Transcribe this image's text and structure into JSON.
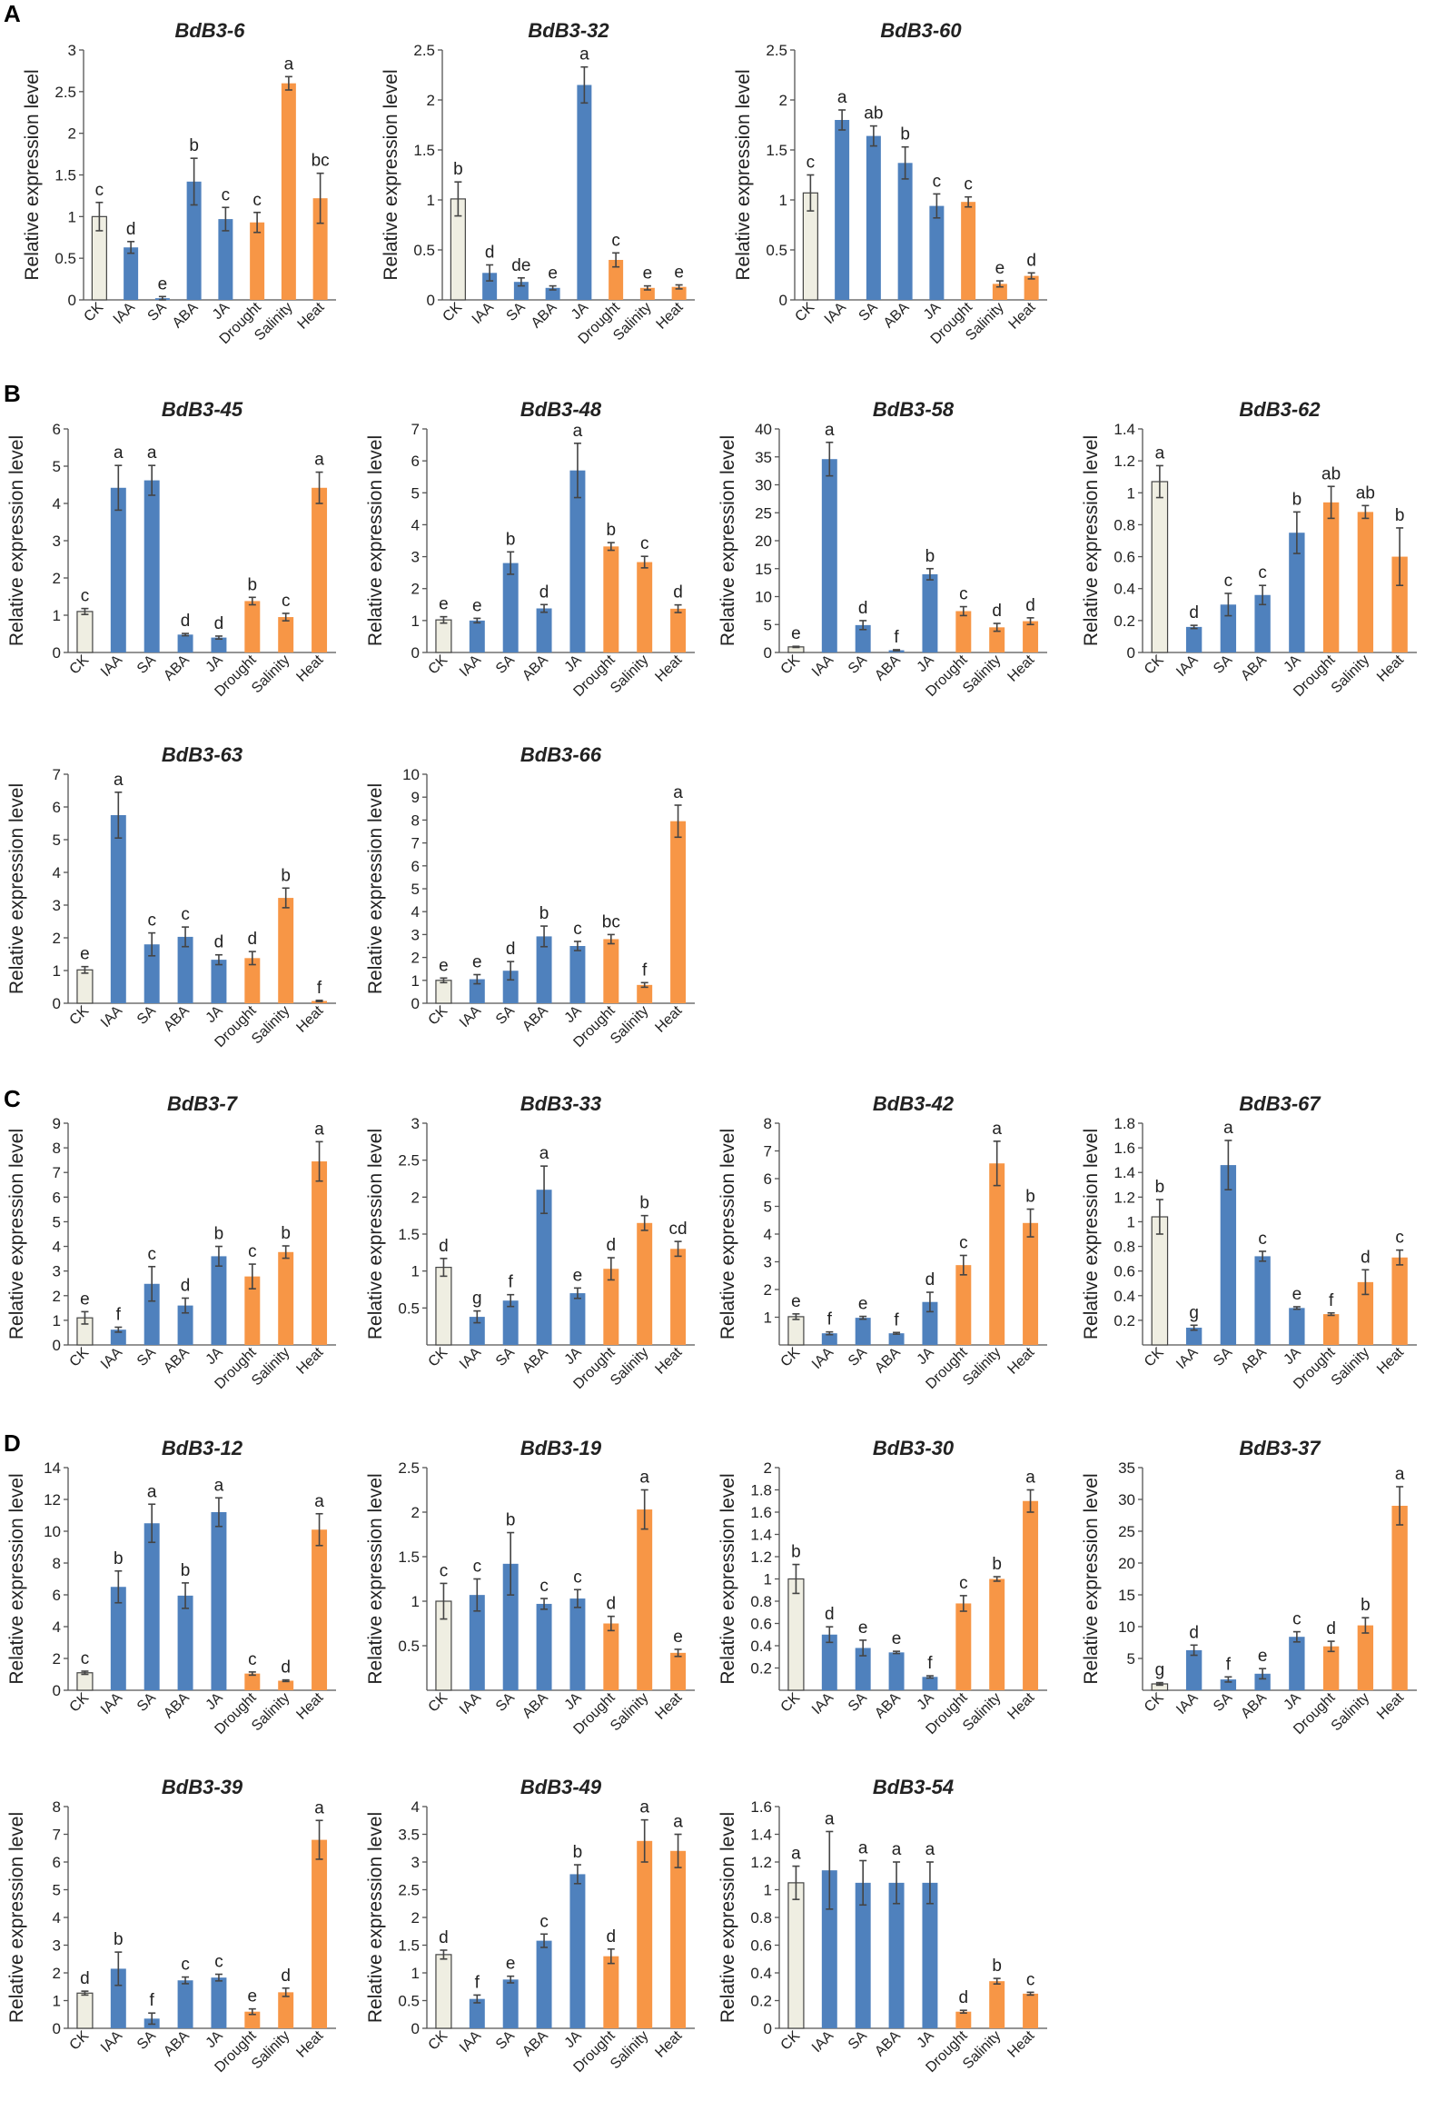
{
  "colors": {
    "control": "#efeee2",
    "hormone": "#4f81bd",
    "stress": "#f79646",
    "control_border": "#444444"
  },
  "panels": [
    "A",
    "B",
    "C",
    "D"
  ],
  "chart_data": [
    {
      "type": "bar",
      "panel": "A",
      "title": "BdB3-6",
      "ylabel": "Relative expression level",
      "ylim": [
        0,
        3
      ],
      "yticks": [
        0,
        0.5,
        1,
        1.5,
        2,
        2.5,
        3
      ],
      "categories": [
        "CK",
        "IAA",
        "SA",
        "ABA",
        "JA",
        "Drought",
        "Salinity",
        "Heat"
      ],
      "values": [
        1.0,
        0.63,
        0.02,
        1.42,
        0.97,
        0.93,
        2.6,
        1.22
      ],
      "errors": [
        0.17,
        0.07,
        0.02,
        0.28,
        0.14,
        0.12,
        0.08,
        0.3
      ],
      "labels": [
        "c",
        "d",
        "e",
        "b",
        "c",
        "c",
        "a",
        "bc"
      ]
    },
    {
      "type": "bar",
      "title": "BdB3-32",
      "ylabel": "Relative expression level",
      "ylim": [
        0,
        2.5
      ],
      "yticks": [
        0,
        0.5,
        1,
        1.5,
        2,
        2.5
      ],
      "categories": [
        "CK",
        "IAA",
        "SA",
        "ABA",
        "JA",
        "Drought",
        "Salinity",
        "Heat"
      ],
      "values": [
        1.01,
        0.27,
        0.18,
        0.12,
        2.15,
        0.4,
        0.12,
        0.13
      ],
      "errors": [
        0.17,
        0.08,
        0.04,
        0.02,
        0.18,
        0.07,
        0.02,
        0.02
      ],
      "labels": [
        "b",
        "d",
        "de",
        "e",
        "a",
        "c",
        "e",
        "e"
      ]
    },
    {
      "type": "bar",
      "title": "BdB3-60",
      "ylabel": "Relative expression level",
      "ylim": [
        0,
        2.5
      ],
      "yticks": [
        0,
        0.5,
        1,
        1.5,
        2,
        2.5
      ],
      "categories": [
        "CK",
        "IAA",
        "SA",
        "ABA",
        "JA",
        "Drought",
        "Salinity",
        "Heat"
      ],
      "values": [
        1.07,
        1.8,
        1.64,
        1.37,
        0.94,
        0.98,
        0.16,
        0.24
      ],
      "errors": [
        0.18,
        0.1,
        0.1,
        0.16,
        0.12,
        0.05,
        0.03,
        0.03
      ],
      "labels": [
        "c",
        "a",
        "ab",
        "b",
        "c",
        "c",
        "e",
        "d"
      ]
    },
    {
      "type": "bar",
      "panel": "B",
      "title": "BdB3-45",
      "ylabel": "Relative expression level",
      "ylim": [
        0,
        6
      ],
      "yticks": [
        0,
        1,
        2,
        3,
        4,
        5,
        6
      ],
      "categories": [
        "CK",
        "IAA",
        "SA",
        "ABA",
        "JA",
        "Drought",
        "Salinity",
        "Heat"
      ],
      "values": [
        1.1,
        4.42,
        4.62,
        0.48,
        0.4,
        1.38,
        0.95,
        4.42
      ],
      "errors": [
        0.08,
        0.6,
        0.4,
        0.03,
        0.04,
        0.1,
        0.1,
        0.42
      ],
      "labels": [
        "c",
        "a",
        "a",
        "d",
        "d",
        "b",
        "c",
        "a"
      ]
    },
    {
      "type": "bar",
      "title": "BdB3-48",
      "ylabel": "Relative expression level",
      "ylim": [
        0,
        7
      ],
      "yticks": [
        0,
        1,
        2,
        3,
        4,
        5,
        6,
        7
      ],
      "categories": [
        "CK",
        "IAA",
        "SA",
        "ABA",
        "JA",
        "Drought",
        "Salinity",
        "Heat"
      ],
      "values": [
        1.02,
        1.0,
        2.8,
        1.38,
        5.7,
        3.32,
        2.83,
        1.37
      ],
      "errors": [
        0.1,
        0.07,
        0.35,
        0.12,
        0.85,
        0.12,
        0.18,
        0.12
      ],
      "labels": [
        "e",
        "e",
        "b",
        "d",
        "a",
        "b",
        "c",
        "d"
      ]
    },
    {
      "type": "bar",
      "title": "BdB3-58",
      "ylabel": "Relative expression level",
      "ylim": [
        0,
        40
      ],
      "yticks": [
        0,
        5,
        10,
        15,
        20,
        25,
        30,
        35,
        40
      ],
      "categories": [
        "CK",
        "IAA",
        "SA",
        "ABA",
        "JA",
        "Drought",
        "Salinity",
        "Heat"
      ],
      "values": [
        1.0,
        34.6,
        4.9,
        0.4,
        14.0,
        7.4,
        4.5,
        5.6
      ],
      "errors": [
        0.1,
        3.0,
        0.8,
        0.1,
        1.0,
        0.8,
        0.7,
        0.6
      ],
      "labels": [
        "e",
        "a",
        "d",
        "f",
        "b",
        "c",
        "d",
        "d"
      ]
    },
    {
      "type": "bar",
      "title": "BdB3-62",
      "ylabel": "Relative expression level",
      "ylim": [
        0,
        1.4
      ],
      "yticks": [
        0,
        0.2,
        0.4,
        0.6,
        0.8,
        1,
        1.2,
        1.4
      ],
      "categories": [
        "CK",
        "IAA",
        "SA",
        "ABA",
        "JA",
        "Drought",
        "Salinity",
        "Heat"
      ],
      "values": [
        1.07,
        0.16,
        0.3,
        0.36,
        0.75,
        0.94,
        0.88,
        0.6
      ],
      "errors": [
        0.1,
        0.01,
        0.07,
        0.06,
        0.13,
        0.1,
        0.04,
        0.18
      ],
      "labels": [
        "a",
        "d",
        "c",
        "c",
        "b",
        "ab",
        "ab",
        "b"
      ]
    },
    {
      "type": "bar",
      "title": "BdB3-63",
      "ylabel": "Relative expression level",
      "ylim": [
        0,
        7
      ],
      "yticks": [
        0,
        1,
        2,
        3,
        4,
        5,
        6,
        7
      ],
      "categories": [
        "CK",
        "IAA",
        "SA",
        "ABA",
        "JA",
        "Drought",
        "Salinity",
        "Heat"
      ],
      "values": [
        1.02,
        5.75,
        1.8,
        2.03,
        1.33,
        1.38,
        3.22,
        0.07
      ],
      "errors": [
        0.1,
        0.7,
        0.35,
        0.3,
        0.15,
        0.2,
        0.3,
        0.02
      ],
      "labels": [
        "e",
        "a",
        "c",
        "c",
        "d",
        "d",
        "b",
        "f"
      ]
    },
    {
      "type": "bar",
      "title": "BdB3-66",
      "ylabel": "Relative expression level",
      "ylim": [
        0,
        10
      ],
      "yticks": [
        0,
        1,
        2,
        3,
        4,
        5,
        6,
        7,
        8,
        9,
        10
      ],
      "categories": [
        "CK",
        "IAA",
        "SA",
        "ABA",
        "JA",
        "Drought",
        "Salinity",
        "Heat"
      ],
      "values": [
        1.0,
        1.05,
        1.42,
        2.92,
        2.5,
        2.8,
        0.8,
        7.95
      ],
      "errors": [
        0.1,
        0.2,
        0.4,
        0.45,
        0.2,
        0.2,
        0.1,
        0.7
      ],
      "labels": [
        "e",
        "e",
        "d",
        "b",
        "c",
        "bc",
        "f",
        "a"
      ]
    },
    {
      "type": "bar",
      "panel": "C",
      "title": "BdB3-7",
      "ylabel": "Relative expression level",
      "ylim": [
        0,
        9
      ],
      "yticks": [
        0,
        1,
        2,
        3,
        4,
        5,
        6,
        7,
        8,
        9
      ],
      "categories": [
        "CK",
        "IAA",
        "SA",
        "ABA",
        "JA",
        "Drought",
        "Salinity",
        "Heat"
      ],
      "values": [
        1.1,
        0.62,
        2.48,
        1.6,
        3.6,
        2.78,
        3.77,
        7.45
      ],
      "errors": [
        0.25,
        0.1,
        0.7,
        0.3,
        0.4,
        0.5,
        0.25,
        0.8
      ],
      "labels": [
        "e",
        "f",
        "c",
        "d",
        "b",
        "c",
        "b",
        "a"
      ]
    },
    {
      "type": "bar",
      "title": "BdB3-33",
      "ylabel": "Relative expression level",
      "ylim": [
        0,
        3
      ],
      "yticks": [
        0.5,
        1,
        1.5,
        2,
        2.5,
        3
      ],
      "categories": [
        "CK",
        "IAA",
        "SA",
        "ABA",
        "JA",
        "Drought",
        "Salinity",
        "Heat"
      ],
      "values": [
        1.05,
        0.38,
        0.6,
        2.1,
        0.7,
        1.03,
        1.65,
        1.3
      ],
      "errors": [
        0.12,
        0.08,
        0.08,
        0.32,
        0.07,
        0.15,
        0.1,
        0.1
      ],
      "labels": [
        "d",
        "g",
        "f",
        "a",
        "e",
        "d",
        "b",
        "cd"
      ]
    },
    {
      "type": "bar",
      "title": "BdB3-42",
      "ylabel": "Relative expression level",
      "ylim": [
        0,
        8
      ],
      "yticks": [
        1,
        2,
        3,
        4,
        5,
        6,
        7,
        8
      ],
      "categories": [
        "CK",
        "IAA",
        "SA",
        "ABA",
        "JA",
        "Drought",
        "Salinity",
        "Heat"
      ],
      "values": [
        1.02,
        0.42,
        0.98,
        0.42,
        1.55,
        2.88,
        6.55,
        4.4
      ],
      "errors": [
        0.1,
        0.05,
        0.05,
        0.03,
        0.35,
        0.35,
        0.8,
        0.5
      ],
      "labels": [
        "e",
        "f",
        "e",
        "f",
        "d",
        "c",
        "a",
        "b"
      ]
    },
    {
      "type": "bar",
      "title": "BdB3-67",
      "ylabel": "Relative expression level",
      "ylim": [
        0,
        1.8
      ],
      "yticks": [
        0.2,
        0.4,
        0.6,
        0.8,
        1,
        1.2,
        1.4,
        1.6,
        1.8
      ],
      "categories": [
        "CK",
        "IAA",
        "SA",
        "ABA",
        "JA",
        "Drought",
        "Salinity",
        "Heat"
      ],
      "values": [
        1.04,
        0.14,
        1.46,
        0.72,
        0.3,
        0.25,
        0.51,
        0.71
      ],
      "errors": [
        0.14,
        0.02,
        0.2,
        0.04,
        0.01,
        0.01,
        0.1,
        0.06
      ],
      "labels": [
        "b",
        "g",
        "a",
        "c",
        "e",
        "f",
        "d",
        "c"
      ]
    },
    {
      "type": "bar",
      "panel": "D",
      "title": "BdB3-12",
      "ylabel": "Relative expression level",
      "ylim": [
        0,
        14
      ],
      "yticks": [
        0,
        2,
        4,
        6,
        8,
        10,
        12,
        14
      ],
      "categories": [
        "CK",
        "IAA",
        "SA",
        "ABA",
        "JA",
        "Drought",
        "Salinity",
        "Heat"
      ],
      "values": [
        1.1,
        6.5,
        10.5,
        5.95,
        11.2,
        1.05,
        0.6,
        10.1
      ],
      "errors": [
        0.1,
        1.0,
        1.2,
        0.8,
        0.9,
        0.1,
        0.05,
        1.0
      ],
      "labels": [
        "c",
        "b",
        "a",
        "b",
        "a",
        "c",
        "d",
        "a"
      ]
    },
    {
      "type": "bar",
      "title": "BdB3-19",
      "ylabel": "Relative expression level",
      "ylim": [
        0,
        2.5
      ],
      "yticks": [
        0.5,
        1,
        1.5,
        2,
        2.5
      ],
      "categories": [
        "CK",
        "IAA",
        "SA",
        "ABA",
        "JA",
        "Drought",
        "Salinity",
        "Heat"
      ],
      "values": [
        1.0,
        1.07,
        1.42,
        0.97,
        1.03,
        0.75,
        2.03,
        0.42
      ],
      "errors": [
        0.2,
        0.18,
        0.35,
        0.06,
        0.1,
        0.08,
        0.22,
        0.04
      ],
      "labels": [
        "c",
        "c",
        "b",
        "c",
        "c",
        "d",
        "a",
        "e"
      ]
    },
    {
      "type": "bar",
      "title": "BdB3-30",
      "ylabel": "Relative expression level",
      "ylim": [
        0,
        2
      ],
      "yticks": [
        0.2,
        0.4,
        0.6,
        0.8,
        1,
        1.2,
        1.4,
        1.6,
        1.8,
        2
      ],
      "categories": [
        "CK",
        "IAA",
        "SA",
        "ABA",
        "JA",
        "Drought",
        "Salinity",
        "Heat"
      ],
      "values": [
        1.0,
        0.5,
        0.38,
        0.34,
        0.12,
        0.78,
        1.0,
        1.7
      ],
      "errors": [
        0.13,
        0.07,
        0.07,
        0.01,
        0.01,
        0.07,
        0.02,
        0.1
      ],
      "labels": [
        "b",
        "d",
        "e",
        "e",
        "f",
        "c",
        "b",
        "a"
      ]
    },
    {
      "type": "bar",
      "title": "BdB3-37",
      "ylabel": "Relative expression level",
      "ylim": [
        0,
        35
      ],
      "yticks": [
        5,
        10,
        15,
        20,
        25,
        30,
        35
      ],
      "categories": [
        "CK",
        "IAA",
        "SA",
        "ABA",
        "JA",
        "Drought",
        "Salinity",
        "Heat"
      ],
      "values": [
        1.0,
        6.3,
        1.7,
        2.6,
        8.4,
        6.9,
        10.2,
        29.0
      ],
      "errors": [
        0.2,
        0.8,
        0.4,
        0.8,
        0.8,
        0.8,
        1.2,
        3.0
      ],
      "labels": [
        "g",
        "d",
        "f",
        "e",
        "c",
        "d",
        "b",
        "a"
      ]
    },
    {
      "type": "bar",
      "title": "BdB3-39",
      "ylabel": "Relative expression level",
      "ylim": [
        0,
        8
      ],
      "yticks": [
        0,
        1,
        2,
        3,
        4,
        5,
        6,
        7,
        8
      ],
      "categories": [
        "CK",
        "IAA",
        "SA",
        "ABA",
        "JA",
        "Drought",
        "Salinity",
        "Heat"
      ],
      "values": [
        1.27,
        2.15,
        0.35,
        1.73,
        1.83,
        0.6,
        1.3,
        6.8
      ],
      "errors": [
        0.07,
        0.6,
        0.2,
        0.12,
        0.12,
        0.1,
        0.15,
        0.7
      ],
      "labels": [
        "d",
        "b",
        "f",
        "c",
        "c",
        "e",
        "d",
        "a"
      ]
    },
    {
      "type": "bar",
      "title": "BdB3-49",
      "ylabel": "Relative expression level",
      "ylim": [
        0,
        4
      ],
      "yticks": [
        0,
        0.5,
        1,
        1.5,
        2,
        2.5,
        3,
        3.5,
        4
      ],
      "categories": [
        "CK",
        "IAA",
        "SA",
        "ABA",
        "JA",
        "Drought",
        "Salinity",
        "Heat"
      ],
      "values": [
        1.33,
        0.53,
        0.88,
        1.58,
        2.78,
        1.3,
        3.38,
        3.2
      ],
      "errors": [
        0.08,
        0.07,
        0.06,
        0.12,
        0.17,
        0.13,
        0.38,
        0.3
      ],
      "labels": [
        "d",
        "f",
        "e",
        "c",
        "b",
        "d",
        "a",
        "a"
      ]
    },
    {
      "type": "bar",
      "title": "BdB3-54",
      "ylabel": "Relative expression level",
      "ylim": [
        0,
        1.6
      ],
      "yticks": [
        0,
        0.2,
        0.4,
        0.6,
        0.8,
        1,
        1.2,
        1.4,
        1.6
      ],
      "categories": [
        "CK",
        "IAA",
        "SA",
        "ABA",
        "JA",
        "Drought",
        "Salinity",
        "Heat"
      ],
      "values": [
        1.05,
        1.14,
        1.05,
        1.05,
        1.05,
        0.12,
        0.34,
        0.25
      ],
      "errors": [
        0.12,
        0.28,
        0.16,
        0.15,
        0.15,
        0.01,
        0.02,
        0.01
      ],
      "labels": [
        "a",
        "a",
        "a",
        "a",
        "a",
        "d",
        "b",
        "c"
      ]
    }
  ]
}
